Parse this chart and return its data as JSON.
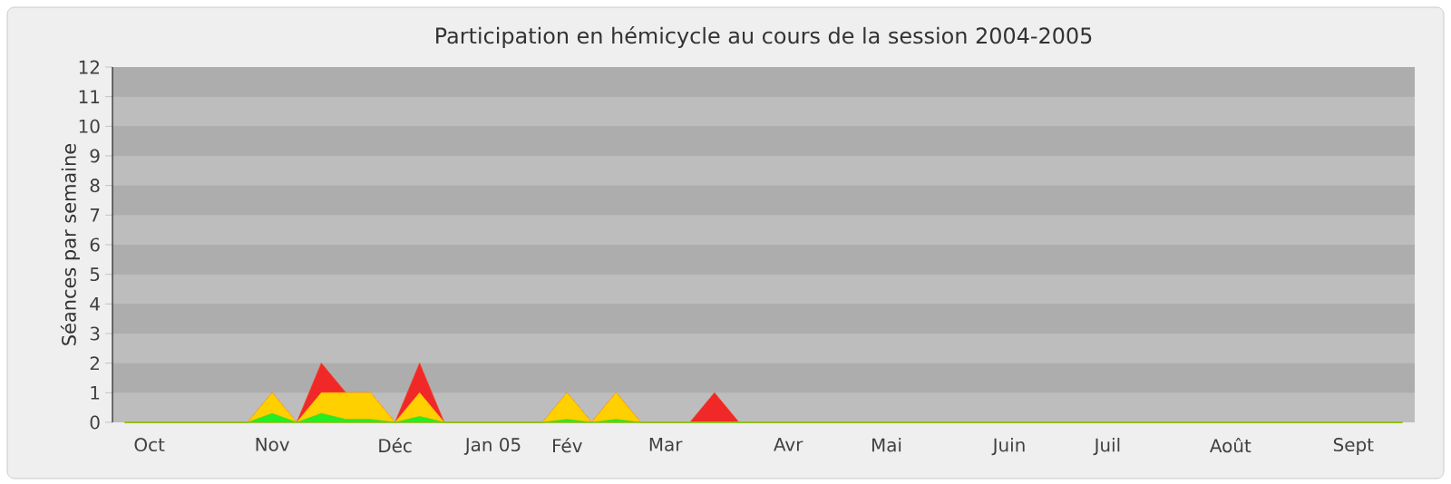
{
  "chart_data": {
    "type": "area",
    "title": "Participation en hémicycle au cours de la session 2004-2005",
    "ylabel": "Séances par semaine",
    "categories": [
      null,
      "Oct",
      null,
      null,
      null,
      null,
      "Nov",
      null,
      null,
      null,
      null,
      "Déc",
      null,
      null,
      null,
      "Jan 05",
      null,
      null,
      "Fév",
      null,
      null,
      null,
      "Mar",
      null,
      null,
      null,
      null,
      "Avr",
      null,
      null,
      null,
      "Mai",
      null,
      null,
      null,
      null,
      "Juin",
      null,
      null,
      null,
      "Juil",
      null,
      null,
      null,
      null,
      "Août",
      null,
      null,
      null,
      null,
      "Sept",
      null,
      null
    ],
    "series": [
      {
        "color": "#f02828",
        "values": [
          0,
          0,
          0,
          0,
          0,
          0,
          1,
          0,
          2,
          1,
          1,
          0,
          2,
          0,
          0,
          0,
          0,
          0,
          1,
          0,
          1,
          0,
          0,
          0,
          1,
          0,
          0,
          0,
          0,
          0,
          0,
          0,
          0,
          0,
          0,
          0,
          0,
          0,
          0,
          0,
          0,
          0,
          0,
          0,
          0,
          0,
          0,
          0,
          0,
          0,
          0,
          0,
          0
        ]
      },
      {
        "color": "#ffd000",
        "values": [
          0,
          0,
          0,
          0,
          0,
          0,
          1,
          0,
          1,
          1,
          1,
          0,
          1,
          0,
          0,
          0,
          0,
          0,
          1,
          0,
          1,
          0,
          0,
          0,
          0,
          0,
          0,
          0,
          0,
          0,
          0,
          0,
          0,
          0,
          0,
          0,
          0,
          0,
          0,
          0,
          0,
          0,
          0,
          0,
          0,
          0,
          0,
          0,
          0,
          0,
          0,
          0,
          0
        ]
      },
      {
        "color": "#22ee22",
        "values": [
          0,
          0,
          0,
          0,
          0,
          0,
          0.3,
          0,
          0.3,
          0.1,
          0.1,
          0,
          0.2,
          0,
          0,
          0,
          0,
          0,
          0.1,
          0,
          0.1,
          0,
          0,
          0,
          0,
          0,
          0,
          0,
          0,
          0,
          0,
          0,
          0,
          0,
          0,
          0,
          0,
          0,
          0,
          0,
          0,
          0,
          0,
          0,
          0,
          0,
          0,
          0,
          0,
          0,
          0,
          0,
          0
        ]
      }
    ],
    "ylim": [
      0,
      12
    ],
    "yticks": [
      0,
      1,
      2,
      3,
      4,
      5,
      6,
      7,
      8,
      9,
      10,
      11,
      12
    ],
    "bands": [
      {
        "axis": "y",
        "from": 1,
        "to": 2,
        "color": "#adadad"
      },
      {
        "axis": "y",
        "from": 3,
        "to": 4,
        "color": "#adadad"
      },
      {
        "axis": "y",
        "from": 5,
        "to": 6,
        "color": "#adadad"
      },
      {
        "axis": "y",
        "from": 7,
        "to": 8,
        "color": "#adadad"
      },
      {
        "axis": "y",
        "from": 9,
        "to": 10,
        "color": "#adadad"
      },
      {
        "axis": "y",
        "from": 11,
        "to": 12,
        "color": "#adadad"
      }
    ]
  }
}
